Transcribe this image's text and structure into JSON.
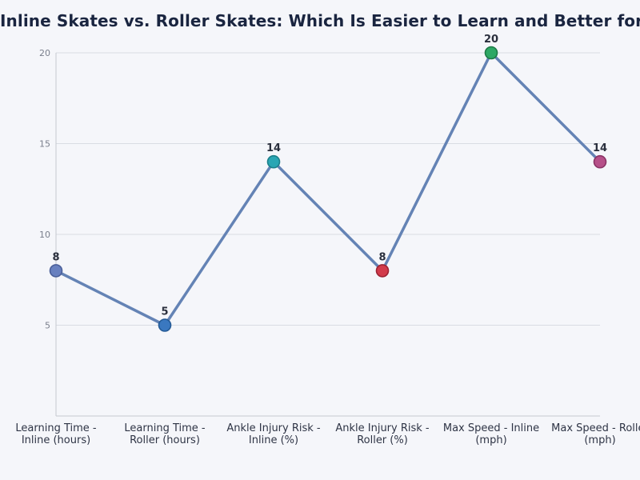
{
  "chart_data": {
    "type": "line",
    "title": "Inline Skates vs. Roller Skates: Which Is Easier to Learn and Better for You?",
    "xlabel": "",
    "ylabel": "",
    "categories": [
      [
        "Learning Time -",
        "Inline (hours)"
      ],
      [
        "Learning Time -",
        "Roller (hours)"
      ],
      [
        "Ankle Injury Risk -",
        "Inline (%)"
      ],
      [
        "Ankle Injury Risk -",
        "Roller (%)"
      ],
      [
        "Max Speed - Inline",
        "(mph)"
      ],
      [
        "Max Speed - Roller",
        "(mph)"
      ]
    ],
    "values": [
      8,
      5,
      14,
      8,
      20,
      14
    ],
    "data_labels": [
      "8",
      "5",
      "14",
      "8",
      "20",
      "14"
    ],
    "point_colors": [
      "#6880bf",
      "#3a78c0",
      "#2aa6b4",
      "#d23b4b",
      "#2ea865",
      "#b65089"
    ],
    "point_stroke_colors": [
      "#4a5f99",
      "#245a96",
      "#1c7f8a",
      "#9c2333",
      "#1e7a47",
      "#8a3466"
    ],
    "line_color": "#6483b5",
    "y_ticks": [
      5,
      10,
      15,
      20
    ],
    "ylim": [
      0,
      20
    ],
    "grid": true,
    "legend": "none"
  }
}
